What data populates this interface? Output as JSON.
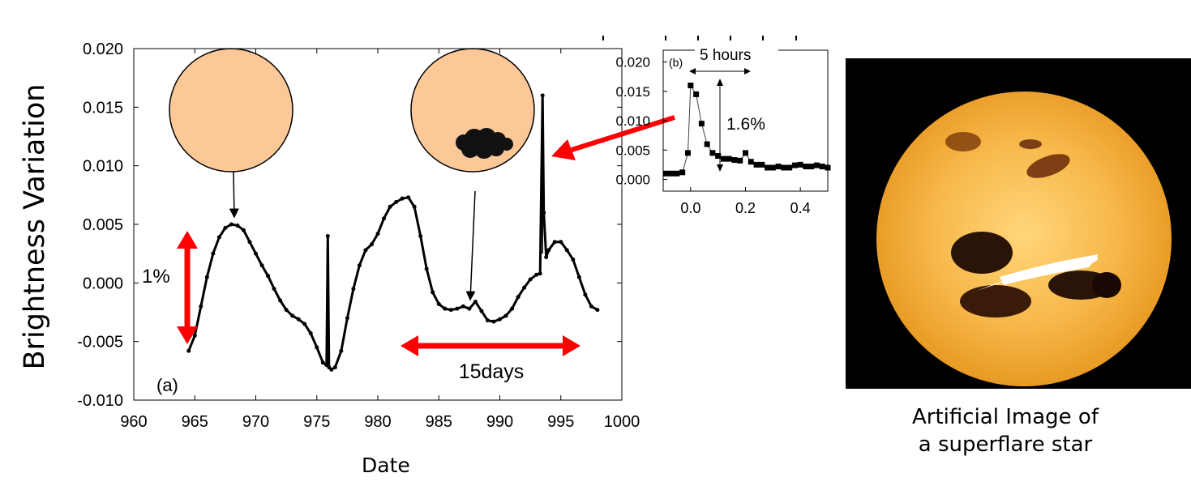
{
  "chart_data": [
    {
      "type": "line",
      "ylabel": "Brightness Variation",
      "xlabel": "Date",
      "xlim": [
        960,
        1000
      ],
      "ylim": [
        -0.01,
        0.02
      ],
      "xticks": [
        "960",
        "965",
        "970",
        "975",
        "980",
        "985",
        "990",
        "995",
        "1000"
      ],
      "yticks": [
        "-0.010",
        "-0.005",
        "0.000",
        "0.005",
        "0.010",
        "0.015",
        "0.020"
      ],
      "panel_label": "(a)",
      "annotations": {
        "amplitude": "1%",
        "period": "15days"
      },
      "grid": false,
      "series": [
        {
          "x": [
            964.5,
            965.0,
            965.5,
            966.0,
            966.5,
            967.0,
            967.5,
            968.0,
            968.5,
            969.0,
            969.5,
            970.0,
            970.5,
            971.0,
            971.5,
            972.0,
            972.5,
            973.0,
            973.5,
            974.0,
            974.5,
            975.0,
            975.5,
            975.8,
            975.9,
            976.0,
            976.2,
            976.5,
            977.0,
            977.5,
            978.0,
            978.5,
            979.0,
            979.5,
            980.0,
            980.5,
            981.0,
            981.5,
            982.0,
            982.5,
            983.0,
            983.5,
            984.0,
            984.5,
            985.0,
            985.5,
            986.0,
            986.5,
            987.0,
            987.5,
            988.0,
            988.5,
            989.0,
            989.5,
            990.0,
            990.5,
            991.0,
            991.5,
            992.0,
            992.5,
            993.0,
            993.3,
            993.5,
            993.6,
            993.8,
            994.0,
            994.5,
            995.0,
            995.5,
            996.0,
            996.5,
            997.0,
            997.5,
            998.0
          ],
          "y": [
            -0.0058,
            -0.0045,
            -0.002,
            0.0005,
            0.0025,
            0.0039,
            0.0047,
            0.005,
            0.0049,
            0.0045,
            0.0035,
            0.0025,
            0.0015,
            0.0006,
            -0.0005,
            -0.0015,
            -0.0023,
            -0.0028,
            -0.0031,
            -0.0035,
            -0.0043,
            -0.0055,
            -0.0068,
            -0.007,
            0.004,
            -0.0072,
            -0.0074,
            -0.0072,
            -0.0058,
            -0.003,
            -0.0005,
            0.0015,
            0.0028,
            0.0033,
            0.0042,
            0.0055,
            0.0065,
            0.0069,
            0.0072,
            0.0073,
            0.0065,
            0.004,
            0.0012,
            -0.0008,
            -0.0018,
            -0.0022,
            -0.0023,
            -0.0022,
            -0.002,
            -0.0022,
            -0.0016,
            -0.0024,
            -0.0032,
            -0.0033,
            -0.0031,
            -0.0028,
            -0.0022,
            -0.0012,
            -0.0004,
            0.0003,
            0.0007,
            0.0008,
            0.016,
            0.006,
            0.0022,
            0.0028,
            0.0035,
            0.0035,
            0.0028,
            0.002,
            0.0005,
            -0.001,
            -0.002,
            -0.0023
          ]
        }
      ]
    },
    {
      "type": "line",
      "panel_label": "(b)",
      "xlim": [
        -0.1,
        0.5
      ],
      "ylim": [
        -0.002,
        0.022
      ],
      "xticks": [
        "0.0",
        "0.2",
        "0.4"
      ],
      "yticks": [
        "0.000",
        "0.005",
        "0.010",
        "0.015",
        "0.020"
      ],
      "annotations": {
        "duration": "5 hours",
        "amplitude": "1.6%"
      },
      "grid": false,
      "series": [
        {
          "x": [
            -0.09,
            -0.07,
            -0.05,
            -0.03,
            -0.01,
            0.0,
            0.02,
            0.04,
            0.06,
            0.08,
            0.1,
            0.12,
            0.14,
            0.16,
            0.18,
            0.2,
            0.22,
            0.24,
            0.26,
            0.28,
            0.3,
            0.32,
            0.34,
            0.36,
            0.38,
            0.4,
            0.42,
            0.44,
            0.46,
            0.48,
            0.5
          ],
          "y": [
            0.001,
            0.001,
            0.001,
            0.0012,
            0.0045,
            0.016,
            0.0145,
            0.0095,
            0.006,
            0.0045,
            0.004,
            0.0035,
            0.0035,
            0.0033,
            0.0032,
            0.0045,
            0.003,
            0.0025,
            0.0025,
            0.002,
            0.002,
            0.0022,
            0.002,
            0.002,
            0.0024,
            0.0025,
            0.0022,
            0.0022,
            0.0024,
            0.0022,
            0.002
          ]
        }
      ]
    }
  ],
  "caption": {
    "line1": "Artificial Image of",
    "line2": "a superflare star"
  },
  "colors": {
    "arrow": "#ff0000",
    "disk": "#fcc898",
    "sun_outer": "#e89a24",
    "sun_inner": "#ffd67a",
    "background": "#ffffff"
  }
}
